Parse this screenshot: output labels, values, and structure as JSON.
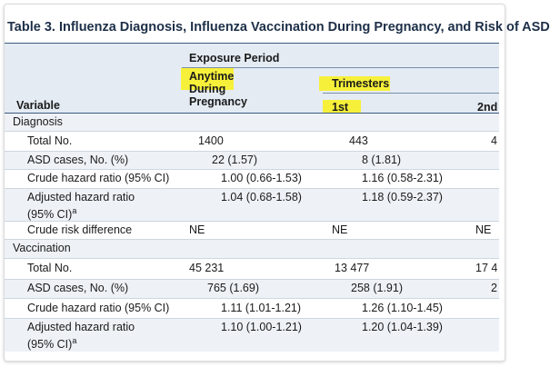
{
  "title": "Table 3. Influenza Diagnosis, Influenza Vaccination During Pregnancy, and Risk of ASD",
  "header": {
    "exposure_period": "Exposure Period",
    "anytime": "Anytime During Pregnancy",
    "trimesters": "Trimesters",
    "first": "1st",
    "second": "2nd",
    "variable": "Variable"
  },
  "sections": [
    {
      "label": "Diagnosis",
      "rows": [
        {
          "label": "Total No.",
          "cells": [
            "1400",
            "443",
            "4"
          ]
        },
        {
          "label": "ASD cases, No. (%)",
          "cells": [
            "22 (1.57)",
            "8 (1.81)"
          ]
        },
        {
          "label": "Crude hazard ratio (95% CI)",
          "cells": [
            "1.00 (0.66-1.53)",
            "1.16 (0.58-2.31)"
          ]
        },
        {
          "label": "Adjusted hazard ratio (95% CI)",
          "footnote": "a",
          "cells": [
            "1.04 (0.68-1.58)",
            "1.18 (0.59-2.37)"
          ]
        },
        {
          "label": "Crude risk difference",
          "cells": [
            "NE",
            "NE",
            "NE"
          ]
        }
      ]
    },
    {
      "label": "Vaccination",
      "rows": [
        {
          "label": "Total No.",
          "cells": [
            "45 231",
            "13 477",
            "17 4"
          ]
        },
        {
          "label": "ASD cases, No. (%)",
          "cells": [
            "765 (1.69)",
            "258 (1.91)",
            "2"
          ]
        },
        {
          "label": "Crude hazard ratio (95% CI)",
          "cells": [
            "1.11 (1.01-1.21)",
            "1.26 (1.10-1.45)"
          ]
        },
        {
          "label": "Adjusted hazard ratio (95% CI)",
          "footnote": "a",
          "cells": [
            "1.10 (1.00-1.21)",
            "1.20 (1.04-1.39)"
          ]
        }
      ]
    }
  ]
}
